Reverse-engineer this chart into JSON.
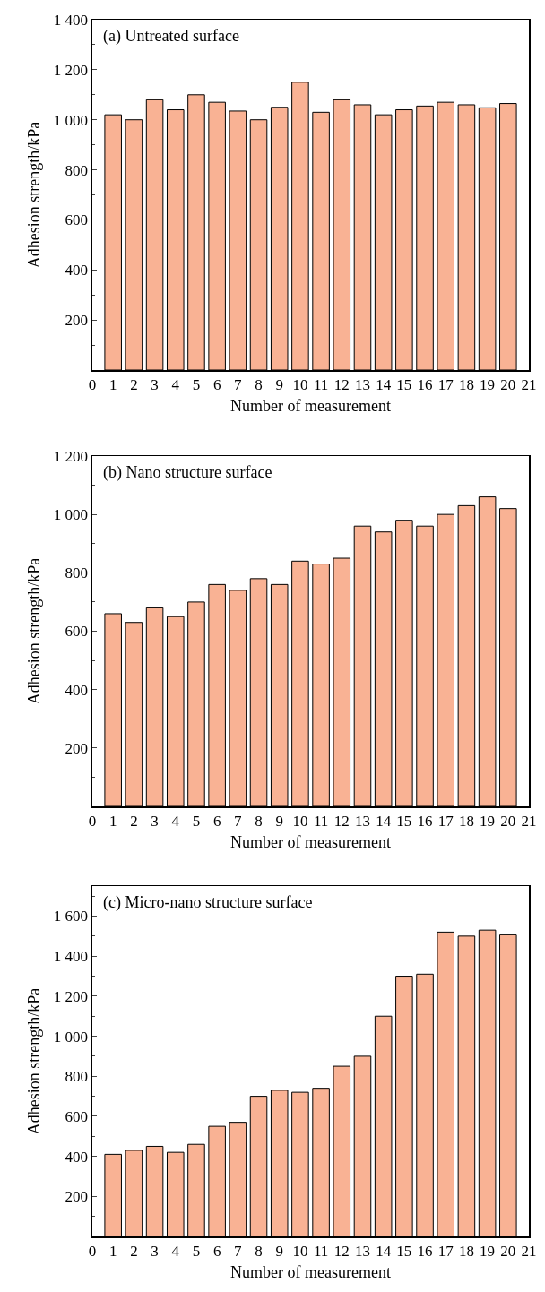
{
  "chart_data": [
    {
      "type": "bar",
      "title": "(a) Untreated surface",
      "xlabel": "Number of measurement",
      "ylabel": "Adhesion strength/kPa",
      "x": [
        1,
        2,
        3,
        4,
        5,
        6,
        7,
        8,
        9,
        10,
        11,
        12,
        13,
        14,
        15,
        16,
        17,
        18,
        19,
        20
      ],
      "values": [
        1020,
        1000,
        1080,
        1040,
        1100,
        1070,
        1035,
        1000,
        1050,
        1150,
        1030,
        1080,
        1060,
        1020,
        1040,
        1055,
        1070,
        1060,
        1048,
        1065
      ],
      "color": "#f9b294",
      "xlim": [
        0,
        21
      ],
      "xticks": [
        0,
        1,
        2,
        3,
        4,
        5,
        6,
        7,
        8,
        9,
        10,
        11,
        12,
        13,
        14,
        15,
        16,
        17,
        18,
        19,
        20,
        21
      ],
      "ylim": [
        0,
        1400
      ],
      "yticks": [
        200,
        400,
        600,
        800,
        {
          "value": 1000,
          "label": "1 000"
        },
        {
          "value": 1200,
          "label": "1 200"
        },
        {
          "value": 1400,
          "label": "1 400"
        }
      ],
      "grid": false
    },
    {
      "type": "bar",
      "title": "(b) Nano structure surface",
      "xlabel": "Number of measurement",
      "ylabel": "Adhesion strength/kPa",
      "x": [
        1,
        2,
        3,
        4,
        5,
        6,
        7,
        8,
        9,
        10,
        11,
        12,
        13,
        14,
        15,
        16,
        17,
        18,
        19,
        20
      ],
      "values": [
        660,
        630,
        680,
        650,
        700,
        760,
        740,
        780,
        760,
        840,
        830,
        850,
        960,
        940,
        980,
        960,
        1000,
        1030,
        1060,
        1020
      ],
      "color": "#f9b294",
      "xlim": [
        0,
        21
      ],
      "xticks": [
        0,
        1,
        2,
        3,
        4,
        5,
        6,
        7,
        8,
        9,
        10,
        11,
        12,
        13,
        14,
        15,
        16,
        17,
        18,
        19,
        20,
        21
      ],
      "ylim": [
        0,
        1200
      ],
      "yticks": [
        200,
        400,
        600,
        800,
        {
          "value": 1000,
          "label": "1 000"
        },
        {
          "value": 1200,
          "label": "1 200"
        }
      ],
      "grid": false
    },
    {
      "type": "bar",
      "title": "(c) Micro-nano structure surface",
      "xlabel": "Number of measurement",
      "ylabel": "Adhesion strength/kPa",
      "x": [
        1,
        2,
        3,
        4,
        5,
        6,
        7,
        8,
        9,
        10,
        11,
        12,
        13,
        14,
        15,
        16,
        17,
        18,
        19,
        20
      ],
      "values": [
        410,
        430,
        450,
        420,
        460,
        550,
        570,
        700,
        730,
        720,
        740,
        850,
        900,
        1100,
        1300,
        1310,
        1520,
        1500,
        1530,
        1510
      ],
      "color": "#f9b294",
      "xlim": [
        0,
        21
      ],
      "xticks": [
        0,
        1,
        2,
        3,
        4,
        5,
        6,
        7,
        8,
        9,
        10,
        11,
        12,
        13,
        14,
        15,
        16,
        17,
        18,
        19,
        20,
        21
      ],
      "ylim": [
        0,
        1750
      ],
      "yticks": [
        200,
        400,
        600,
        800,
        {
          "value": 1000,
          "label": "1 000"
        },
        {
          "value": 1200,
          "label": "1 200"
        },
        {
          "value": 1400,
          "label": "1 400"
        },
        {
          "value": 1600,
          "label": "1 600"
        }
      ],
      "grid": false
    }
  ]
}
